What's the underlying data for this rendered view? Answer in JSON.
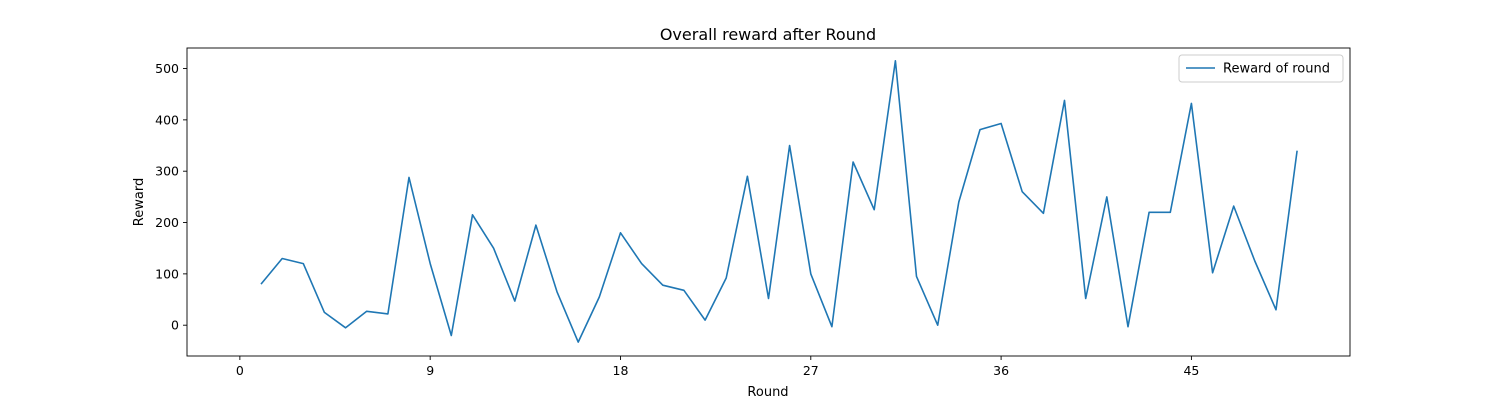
{
  "chart_data": {
    "type": "line",
    "title": "Overall reward after Round",
    "xlabel": "Round",
    "ylabel": "Reward",
    "xlim": [
      -2.5,
      52.5
    ],
    "ylim": [
      -60,
      540
    ],
    "xticks": [
      0,
      9,
      18,
      27,
      36,
      45
    ],
    "yticks": [
      0,
      100,
      200,
      300,
      400,
      500
    ],
    "legend_position": "top-right",
    "grid": false,
    "series": [
      {
        "name": "Reward of round",
        "color": "#1f77b4",
        "x": [
          1,
          2,
          3,
          4,
          5,
          6,
          7,
          8,
          9,
          10,
          11,
          12,
          13,
          14,
          15,
          16,
          17,
          18,
          19,
          20,
          21,
          22,
          23,
          24,
          25,
          26,
          27,
          28,
          29,
          30,
          31,
          32,
          33,
          34,
          35,
          36,
          37,
          38,
          39,
          40,
          41,
          42,
          43,
          44,
          45,
          46,
          47,
          48,
          49,
          50
        ],
        "values": [
          80,
          130,
          120,
          25,
          -5,
          27,
          22,
          288,
          120,
          -20,
          215,
          150,
          47,
          195,
          65,
          -33,
          55,
          180,
          120,
          78,
          68,
          10,
          92,
          290,
          52,
          350,
          100,
          -3,
          318,
          225,
          515,
          95,
          0,
          240,
          381,
          393,
          260,
          218,
          438,
          52,
          250,
          -3,
          220,
          220,
          432,
          102,
          232,
          125,
          30,
          340
        ]
      }
    ]
  }
}
